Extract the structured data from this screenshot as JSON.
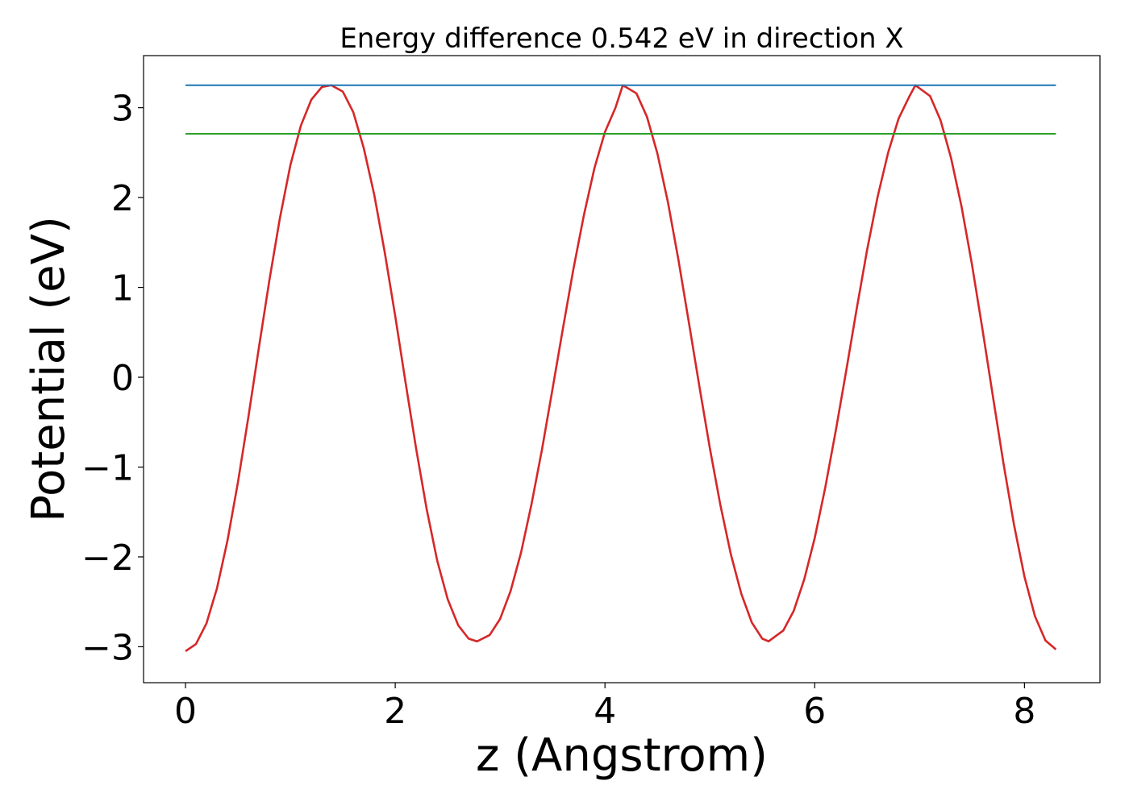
{
  "chart_data": {
    "type": "line",
    "title": "Energy difference 0.542 eV in direction X",
    "xlabel": "z (Angstrom)",
    "ylabel": "Potential (eV)",
    "xlim": [
      -0.4,
      8.72
    ],
    "ylim": [
      -3.4,
      3.58
    ],
    "xticks": [
      0,
      2,
      4,
      6,
      8
    ],
    "xtick_labels": [
      "0",
      "2",
      "4",
      "6",
      "8"
    ],
    "yticks": [
      -3,
      -2,
      -1,
      0,
      1,
      2,
      3
    ],
    "ytick_labels": [
      "−3",
      "−2",
      "−1",
      "0",
      "1",
      "2",
      "3"
    ],
    "grid": false,
    "series": [
      {
        "color": "#d62728",
        "x": [
          0,
          0.1,
          0.2,
          0.3,
          0.4,
          0.5,
          0.6,
          0.7,
          0.8,
          0.9,
          1.0,
          1.1,
          1.2,
          1.3,
          1.39,
          1.5,
          1.6,
          1.7,
          1.8,
          1.9,
          2.0,
          2.1,
          2.2,
          2.3,
          2.4,
          2.5,
          2.6,
          2.7,
          2.78,
          2.9,
          3.0,
          3.1,
          3.2,
          3.3,
          3.4,
          3.5,
          3.6,
          3.7,
          3.8,
          3.9,
          4.0,
          4.1,
          4.17,
          4.3,
          4.4,
          4.5,
          4.6,
          4.7,
          4.8,
          4.9,
          5.0,
          5.1,
          5.2,
          5.3,
          5.4,
          5.5,
          5.56,
          5.7,
          5.8,
          5.9,
          6.0,
          6.1,
          6.2,
          6.3,
          6.4,
          6.5,
          6.6,
          6.7,
          6.8,
          6.9,
          6.96,
          7.1,
          7.2,
          7.3,
          7.4,
          7.5,
          7.6,
          7.7,
          7.8,
          7.9,
          8.0,
          8.1,
          8.2,
          8.3
        ],
        "y": [
          -3.05,
          -2.97,
          -2.74,
          -2.35,
          -1.82,
          -1.17,
          -0.44,
          0.33,
          1.08,
          1.77,
          2.36,
          2.8,
          3.09,
          3.23,
          3.25,
          3.18,
          2.95,
          2.55,
          2.03,
          1.39,
          0.68,
          -0.07,
          -0.8,
          -1.47,
          -2.04,
          -2.47,
          -2.76,
          -2.91,
          -2.94,
          -2.87,
          -2.69,
          -2.38,
          -1.95,
          -1.41,
          -0.8,
          -0.13,
          0.55,
          1.21,
          1.81,
          2.33,
          2.73,
          3.0,
          3.25,
          3.16,
          2.9,
          2.49,
          1.95,
          1.31,
          0.61,
          -0.1,
          -0.79,
          -1.42,
          -1.97,
          -2.41,
          -2.73,
          -2.91,
          -2.94,
          -2.82,
          -2.6,
          -2.25,
          -1.79,
          -1.23,
          -0.6,
          0.07,
          0.76,
          1.42,
          2.01,
          2.5,
          2.88,
          3.12,
          3.25,
          3.13,
          2.86,
          2.44,
          1.9,
          1.25,
          0.53,
          -0.22,
          -0.96,
          -1.64,
          -2.22,
          -2.66,
          -2.93,
          -3.03
        ]
      },
      {
        "color": "#1f77b4",
        "x": [
          0,
          8.3
        ],
        "y": [
          3.25,
          3.25
        ]
      },
      {
        "color": "#2ca02c",
        "x": [
          0,
          8.3
        ],
        "y": [
          2.71,
          2.71
        ]
      }
    ]
  }
}
